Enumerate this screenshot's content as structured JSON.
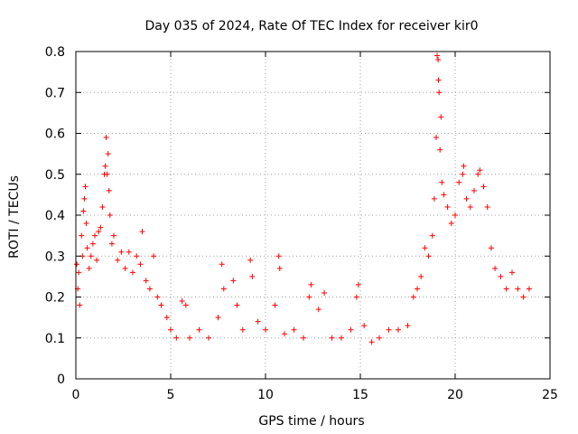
{
  "chart_data": {
    "type": "scatter",
    "title": "Day 035 of 2024, Rate Of TEC Index for receiver kir0",
    "xlabel": "GPS time / hours",
    "ylabel": "ROTI / TECUs",
    "xlim": [
      0,
      25
    ],
    "ylim": [
      0,
      0.8
    ],
    "xticks": [
      0,
      5,
      10,
      15,
      20,
      25
    ],
    "yticks": [
      0,
      0.1,
      0.2,
      0.3,
      0.4,
      0.5,
      0.6,
      0.7,
      0.8
    ],
    "grid": true,
    "marker": "+",
    "color": "#ff0000",
    "series": [
      {
        "name": "ROTI",
        "points": [
          [
            0.05,
            0.28
          ],
          [
            0.1,
            0.22
          ],
          [
            0.15,
            0.26
          ],
          [
            0.2,
            0.18
          ],
          [
            0.3,
            0.35
          ],
          [
            0.35,
            0.3
          ],
          [
            0.4,
            0.41
          ],
          [
            0.45,
            0.44
          ],
          [
            0.5,
            0.47
          ],
          [
            0.55,
            0.38
          ],
          [
            0.6,
            0.32
          ],
          [
            0.7,
            0.27
          ],
          [
            0.8,
            0.3
          ],
          [
            0.9,
            0.33
          ],
          [
            1.0,
            0.35
          ],
          [
            1.1,
            0.29
          ],
          [
            1.2,
            0.36
          ],
          [
            1.3,
            0.37
          ],
          [
            1.4,
            0.42
          ],
          [
            1.5,
            0.5
          ],
          [
            1.55,
            0.52
          ],
          [
            1.6,
            0.59
          ],
          [
            1.65,
            0.5
          ],
          [
            1.7,
            0.55
          ],
          [
            1.75,
            0.46
          ],
          [
            1.8,
            0.4
          ],
          [
            1.9,
            0.33
          ],
          [
            2.0,
            0.35
          ],
          [
            2.2,
            0.29
          ],
          [
            2.4,
            0.31
          ],
          [
            2.6,
            0.27
          ],
          [
            2.8,
            0.31
          ],
          [
            3.0,
            0.26
          ],
          [
            3.2,
            0.3
          ],
          [
            3.4,
            0.28
          ],
          [
            3.5,
            0.36
          ],
          [
            3.7,
            0.24
          ],
          [
            3.9,
            0.22
          ],
          [
            4.1,
            0.3
          ],
          [
            4.3,
            0.2
          ],
          [
            4.5,
            0.18
          ],
          [
            4.8,
            0.15
          ],
          [
            5.0,
            0.12
          ],
          [
            5.3,
            0.1
          ],
          [
            5.6,
            0.19
          ],
          [
            5.8,
            0.18
          ],
          [
            6.0,
            0.1
          ],
          [
            6.5,
            0.12
          ],
          [
            7.0,
            0.1
          ],
          [
            7.5,
            0.15
          ],
          [
            7.7,
            0.28
          ],
          [
            7.8,
            0.22
          ],
          [
            8.3,
            0.24
          ],
          [
            8.5,
            0.18
          ],
          [
            8.8,
            0.12
          ],
          [
            9.2,
            0.29
          ],
          [
            9.3,
            0.25
          ],
          [
            9.6,
            0.14
          ],
          [
            10.0,
            0.12
          ],
          [
            10.5,
            0.18
          ],
          [
            10.7,
            0.3
          ],
          [
            10.75,
            0.27
          ],
          [
            11.0,
            0.11
          ],
          [
            11.5,
            0.12
          ],
          [
            12.0,
            0.1
          ],
          [
            12.3,
            0.2
          ],
          [
            12.4,
            0.23
          ],
          [
            12.8,
            0.17
          ],
          [
            13.1,
            0.21
          ],
          [
            13.5,
            0.1
          ],
          [
            14.0,
            0.1
          ],
          [
            14.5,
            0.12
          ],
          [
            14.8,
            0.2
          ],
          [
            14.9,
            0.23
          ],
          [
            15.2,
            0.13
          ],
          [
            15.6,
            0.09
          ],
          [
            16.0,
            0.1
          ],
          [
            16.5,
            0.12
          ],
          [
            17.0,
            0.12
          ],
          [
            17.5,
            0.13
          ],
          [
            17.8,
            0.2
          ],
          [
            18.0,
            0.22
          ],
          [
            18.2,
            0.25
          ],
          [
            18.4,
            0.32
          ],
          [
            18.6,
            0.3
          ],
          [
            18.8,
            0.35
          ],
          [
            18.9,
            0.44
          ],
          [
            19.0,
            0.59
          ],
          [
            19.05,
            0.79
          ],
          [
            19.1,
            0.78
          ],
          [
            19.12,
            0.73
          ],
          [
            19.15,
            0.7
          ],
          [
            19.2,
            0.56
          ],
          [
            19.25,
            0.64
          ],
          [
            19.3,
            0.48
          ],
          [
            19.4,
            0.45
          ],
          [
            19.6,
            0.42
          ],
          [
            19.8,
            0.38
          ],
          [
            20.0,
            0.4
          ],
          [
            20.2,
            0.48
          ],
          [
            20.4,
            0.5
          ],
          [
            20.45,
            0.52
          ],
          [
            20.6,
            0.44
          ],
          [
            20.8,
            0.42
          ],
          [
            21.0,
            0.46
          ],
          [
            21.2,
            0.5
          ],
          [
            21.3,
            0.51
          ],
          [
            21.5,
            0.47
          ],
          [
            21.7,
            0.42
          ],
          [
            21.9,
            0.32
          ],
          [
            22.1,
            0.27
          ],
          [
            22.4,
            0.25
          ],
          [
            22.7,
            0.22
          ],
          [
            23.0,
            0.26
          ],
          [
            23.3,
            0.22
          ],
          [
            23.6,
            0.2
          ],
          [
            23.9,
            0.22
          ]
        ]
      }
    ]
  }
}
